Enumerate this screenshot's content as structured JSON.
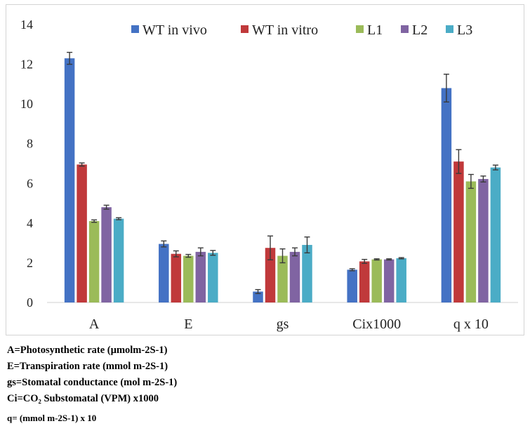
{
  "chart_data": {
    "type": "bar",
    "categories": [
      "A",
      "E",
      "gs",
      "Cix1000",
      "q x 10"
    ],
    "ylim": [
      0,
      14
    ],
    "yticks": [
      0,
      2,
      4,
      6,
      8,
      10,
      12,
      14
    ],
    "legend_position": "top",
    "grid": false,
    "series": [
      {
        "name": "WT in vivo",
        "color": "#4472c4",
        "values": [
          12.3,
          2.95,
          0.55,
          1.65,
          10.8
        ],
        "errors": [
          0.3,
          0.15,
          0.1,
          0.05,
          0.7
        ]
      },
      {
        "name": "WT in vitro",
        "color": "#c0393b",
        "values": [
          6.95,
          2.45,
          2.75,
          2.07,
          7.1
        ],
        "errors": [
          0.08,
          0.15,
          0.6,
          0.1,
          0.6
        ]
      },
      {
        "name": "L1",
        "color": "#9bbb59",
        "values": [
          4.1,
          2.35,
          2.35,
          2.17,
          6.1
        ],
        "errors": [
          0.06,
          0.07,
          0.35,
          0.03,
          0.35
        ]
      },
      {
        "name": "L2",
        "color": "#8064a2",
        "values": [
          4.8,
          2.55,
          2.55,
          2.17,
          6.22
        ],
        "errors": [
          0.1,
          0.2,
          0.2,
          0.03,
          0.15
        ]
      },
      {
        "name": "L3",
        "color": "#4bacc6",
        "values": [
          4.22,
          2.5,
          2.9,
          2.23,
          6.8
        ],
        "errors": [
          0.05,
          0.12,
          0.4,
          0.03,
          0.12
        ]
      }
    ]
  },
  "notes": [
    "A=Photosynthetic rate (µmolm-2S-1)",
    "E=Transpiration rate (mmol m-2S-1)",
    "gs=Stomatal conductance (mol m-2S-1)",
    "Ci=CO₂ Substomatal (VPM) x1000",
    "q= (mmol m-2S-1) x 10"
  ]
}
